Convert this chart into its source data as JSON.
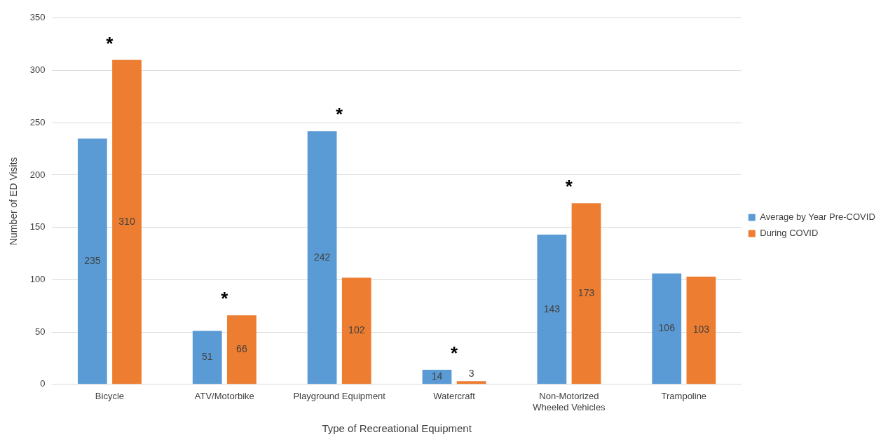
{
  "chart_data": {
    "type": "bar",
    "xlabel": "Type of Recreational Equipment",
    "ylabel": "Number of ED Visits",
    "categories": [
      "Bicycle",
      "ATV/Motorbike",
      "Playground Equipment",
      "Watercraft",
      "Non-Motorized Wheeled Vehicles",
      "Trampoline"
    ],
    "series": [
      {
        "name": "Average by Year Pre-COVID",
        "color": "#5b9bd5",
        "values": [
          235,
          51,
          242,
          14,
          143,
          106
        ]
      },
      {
        "name": "During COVID",
        "color": "#ed7d31",
        "values": [
          310,
          66,
          102,
          3,
          173,
          103
        ]
      }
    ],
    "ylim": [
      0,
      350
    ],
    "yticks": [
      0,
      50,
      100,
      150,
      200,
      250,
      300,
      350
    ],
    "grid": "y",
    "legend": "right",
    "data_labels": true,
    "annotations": [
      {
        "text": "*",
        "x": "Bicycle",
        "y": 310
      },
      {
        "text": "*",
        "x": "ATV/Motorbike",
        "y": 66
      },
      {
        "text": "*",
        "x": "Playground Equipment",
        "y": 242
      },
      {
        "text": "*",
        "x": "Watercraft",
        "y": 14
      },
      {
        "text": "*",
        "x": "Non-Motorized Wheeled Vehicles",
        "y": 173
      }
    ]
  }
}
